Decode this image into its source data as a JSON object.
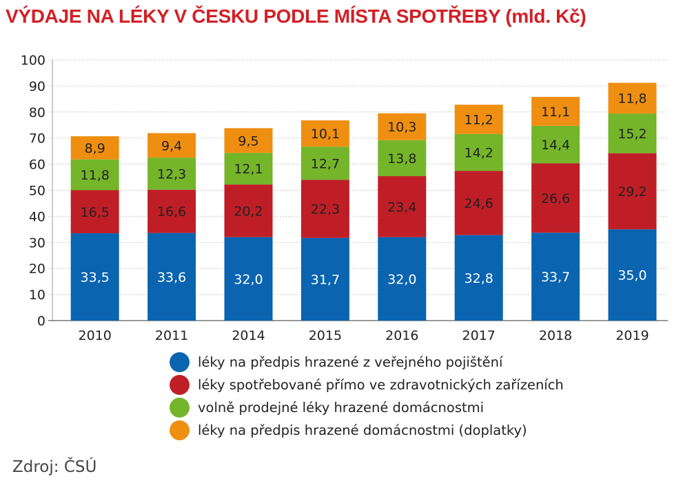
{
  "title": "VÝDAJE NA LÉKY V ČESKU PODLE MÍSTA SPOTŘEBY (mld. Kč)",
  "source": "Zdroj: ČSÚ",
  "chart_data": {
    "type": "bar",
    "stacked": true,
    "title": "VÝDAJE NA LÉKY V ČESKU PODLE MÍSTA SPOTŘEBY (mld. Kč)",
    "categories": [
      "2010",
      "2011",
      "2014",
      "2015",
      "2016",
      "2017",
      "2018",
      "2019"
    ],
    "ylim": [
      0,
      100
    ],
    "yticks": [
      0,
      10,
      20,
      30,
      40,
      50,
      60,
      70,
      80,
      90,
      100
    ],
    "grid": true,
    "legend_position": "bottom",
    "series": [
      {
        "name": "léky na předpis hrazené z veřejného pojištění",
        "color": "#0a64b0",
        "values": [
          33.5,
          33.6,
          32.0,
          31.7,
          32.0,
          32.8,
          33.7,
          35.0
        ],
        "labels": [
          "33,5",
          "33,6",
          "32,0",
          "31,7",
          "32,0",
          "32,8",
          "33,7",
          "35,0"
        ]
      },
      {
        "name": "léky spotřebované přímo ve zdravotnických zařízeních",
        "color": "#bf1e26",
        "values": [
          16.5,
          16.6,
          20.2,
          22.3,
          23.4,
          24.6,
          26.6,
          29.2
        ],
        "labels": [
          "16,5",
          "16,6",
          "20,2",
          "22,3",
          "23,4",
          "24,6",
          "26,6",
          "29,2"
        ]
      },
      {
        "name": "volně prodejné léky hrazené domácnostmi",
        "color": "#74b52a",
        "values": [
          11.8,
          12.3,
          12.1,
          12.7,
          13.8,
          14.2,
          14.4,
          15.2
        ],
        "labels": [
          "11,8",
          "12,3",
          "12,1",
          "12,7",
          "13,8",
          "14,2",
          "14,4",
          "15,2"
        ]
      },
      {
        "name": "léky na předpis hrazené domácnostmi (doplatky)",
        "color": "#ef8f12",
        "values": [
          8.9,
          9.4,
          9.5,
          10.1,
          10.3,
          11.2,
          11.1,
          11.8
        ],
        "labels": [
          "8,9",
          "9,4",
          "9,5",
          "10,1",
          "10,3",
          "11,2",
          "11,1",
          "11,8"
        ]
      }
    ]
  }
}
